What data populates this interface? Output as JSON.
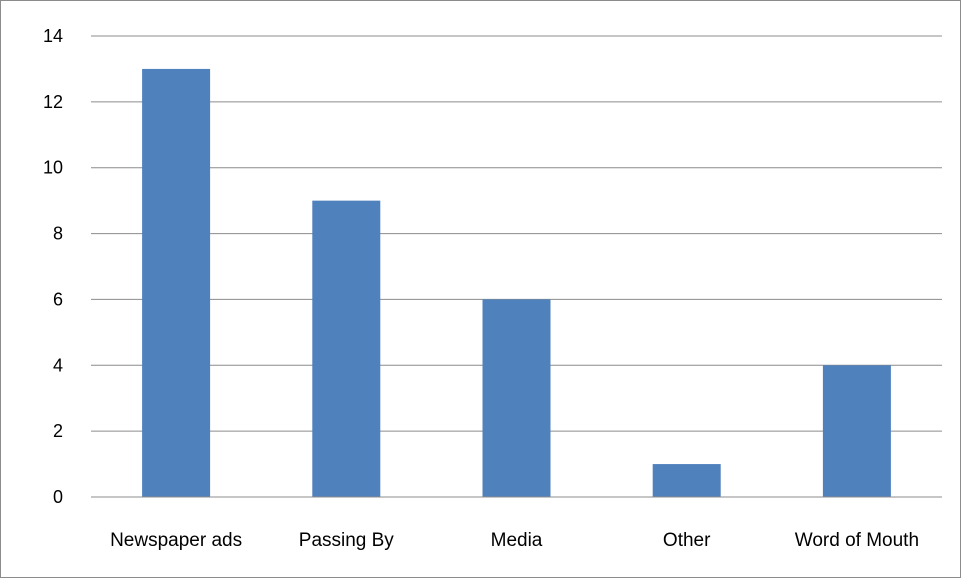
{
  "chart_data": {
    "type": "bar",
    "categories": [
      "Newspaper ads",
      "Passing By",
      "Media",
      "Other",
      "Word of Mouth"
    ],
    "values": [
      13,
      9,
      6,
      1,
      4
    ],
    "ylim": [
      0,
      14
    ],
    "y_ticks": [
      "0",
      "2",
      "4",
      "6",
      "8",
      "10",
      "12",
      "14"
    ],
    "grid": true,
    "bar_color": "#4f81bd",
    "grid_color": "#8c8c8c"
  }
}
